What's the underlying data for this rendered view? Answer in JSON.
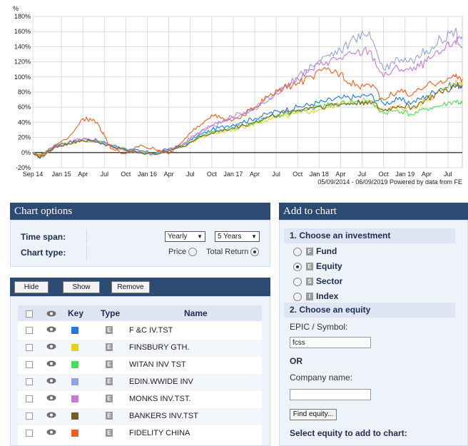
{
  "chart_data": {
    "type": "line",
    "y_unit": "%",
    "ylim": [
      -20,
      180
    ],
    "y_ticks": [
      "-20%",
      "0%",
      "20%",
      "40%",
      "60%",
      "80%",
      "100%",
      "120%",
      "140%",
      "160%",
      "180%"
    ],
    "x_ticks": [
      "Sep 14",
      "Jan 15",
      "Apr",
      "Jul",
      "Oct",
      "Jan 16",
      "Apr",
      "Jul",
      "Oct",
      "Jan 17",
      "Apr",
      "Jul",
      "Oct",
      "Jan 18",
      "Apr",
      "Jul",
      "Oct",
      "Jan 19",
      "Apr",
      "Jul"
    ],
    "x_tick_months": [
      0,
      4,
      7,
      10,
      13,
      16,
      19,
      22,
      25,
      28,
      31,
      34,
      37,
      40,
      43,
      46,
      49,
      52,
      55,
      58
    ],
    "x_range_months": [
      0,
      60
    ],
    "footnote": "05/09/2014 - 06/09/2019 Powered by data from FE",
    "grid": true,
    "series": [
      {
        "name": "F &C IV.TST",
        "color": "#1e78e6",
        "x": [
          0,
          1,
          3,
          5,
          7,
          9,
          11,
          13,
          15,
          17,
          19,
          21,
          23,
          25,
          27,
          29,
          31,
          33,
          35,
          37,
          39,
          41,
          43,
          45,
          47,
          49,
          51,
          53,
          55,
          57,
          59,
          60
        ],
        "y": [
          0,
          -6,
          10,
          14,
          18,
          16,
          10,
          5,
          2,
          0,
          5,
          10,
          22,
          30,
          35,
          40,
          45,
          52,
          56,
          60,
          64,
          68,
          72,
          73,
          76,
          65,
          70,
          66,
          75,
          85,
          90,
          88
        ]
      },
      {
        "name": "FINSBURY GTH.",
        "color": "#e8d21a",
        "x": [
          0,
          1,
          3,
          5,
          7,
          9,
          11,
          13,
          15,
          17,
          19,
          21,
          23,
          25,
          27,
          29,
          31,
          33,
          35,
          37,
          39,
          41,
          43,
          45,
          47,
          49,
          51,
          53,
          55,
          57,
          59,
          60
        ],
        "y": [
          0,
          -7,
          8,
          12,
          15,
          14,
          8,
          3,
          0,
          -2,
          3,
          8,
          18,
          25,
          28,
          33,
          38,
          45,
          48,
          52,
          55,
          60,
          64,
          66,
          70,
          55,
          60,
          58,
          70,
          80,
          92,
          95
        ]
      },
      {
        "name": "WITAN INV TST",
        "color": "#4ddc55",
        "x": [
          0,
          1,
          3,
          5,
          7,
          9,
          11,
          13,
          15,
          17,
          19,
          21,
          23,
          25,
          27,
          29,
          31,
          33,
          35,
          37,
          39,
          41,
          43,
          45,
          47,
          49,
          51,
          53,
          55,
          57,
          59,
          60
        ],
        "y": [
          0,
          -5,
          9,
          13,
          16,
          15,
          9,
          4,
          1,
          -1,
          4,
          9,
          20,
          27,
          30,
          35,
          40,
          47,
          50,
          55,
          58,
          62,
          65,
          67,
          68,
          52,
          56,
          50,
          58,
          62,
          68,
          65
        ]
      },
      {
        "name": "EDIN.WWIDE INV",
        "color": "#8fa4e0",
        "x": [
          0,
          1,
          3,
          5,
          7,
          9,
          11,
          13,
          15,
          17,
          19,
          21,
          23,
          25,
          27,
          29,
          31,
          33,
          35,
          37,
          39,
          41,
          43,
          45,
          47,
          49,
          51,
          53,
          55,
          57,
          59,
          60
        ],
        "y": [
          0,
          -8,
          6,
          12,
          18,
          14,
          8,
          2,
          -1,
          -3,
          3,
          10,
          25,
          35,
          42,
          50,
          58,
          70,
          85,
          100,
          115,
          128,
          135,
          150,
          160,
          110,
          125,
          122,
          135,
          150,
          162,
          150
        ]
      },
      {
        "name": "MONKS INV.TST.",
        "color": "#c87ad8",
        "x": [
          0,
          1,
          3,
          5,
          7,
          9,
          11,
          13,
          15,
          17,
          19,
          21,
          23,
          25,
          27,
          29,
          31,
          33,
          35,
          37,
          39,
          41,
          43,
          45,
          47,
          49,
          51,
          53,
          55,
          57,
          59,
          60
        ],
        "y": [
          0,
          -6,
          8,
          14,
          18,
          15,
          9,
          3,
          0,
          -2,
          4,
          12,
          26,
          36,
          44,
          52,
          60,
          72,
          86,
          98,
          110,
          120,
          125,
          130,
          135,
          100,
          112,
          108,
          120,
          132,
          148,
          140
        ]
      },
      {
        "name": "BANKERS INV.TST",
        "color": "#7a5a2a",
        "x": [
          0,
          1,
          3,
          5,
          7,
          9,
          11,
          13,
          15,
          17,
          19,
          21,
          23,
          25,
          27,
          29,
          31,
          33,
          35,
          37,
          39,
          41,
          43,
          45,
          47,
          49,
          51,
          53,
          55,
          57,
          59,
          60
        ],
        "y": [
          0,
          -7,
          7,
          12,
          16,
          14,
          8,
          3,
          0,
          -2,
          3,
          8,
          19,
          26,
          30,
          35,
          40,
          47,
          52,
          56,
          60,
          62,
          64,
          65,
          68,
          55,
          62,
          60,
          70,
          80,
          86,
          90
        ]
      },
      {
        "name": "FIDELITY CHINA",
        "color": "#f0601e",
        "x": [
          0,
          1,
          3,
          5,
          7,
          9,
          10,
          11,
          13,
          15,
          17,
          19,
          21,
          23,
          25,
          27,
          29,
          31,
          33,
          35,
          37,
          39,
          41,
          43,
          45,
          47,
          49,
          51,
          53,
          55,
          57,
          59,
          60
        ],
        "y": [
          0,
          -4,
          8,
          20,
          45,
          40,
          22,
          5,
          -2,
          10,
          5,
          -2,
          15,
          35,
          50,
          42,
          45,
          60,
          75,
          85,
          92,
          100,
          110,
          105,
          88,
          90,
          70,
          82,
          76,
          88,
          95,
          100,
          98
        ]
      }
    ]
  },
  "chart_options": {
    "title": "Chart options",
    "time_span_label": "Time span:",
    "time_span_period": "Yearly",
    "time_span_value": "5 Years",
    "chart_type_label": "Chart type:",
    "chart_type_price": "Price",
    "chart_type_total_return": "Total Return",
    "chart_type_selected": "Total Return"
  },
  "series_table": {
    "hide_label": "Hide",
    "show_label": "Show",
    "remove_label": "Remove",
    "headers": {
      "key": "Key",
      "type": "Type",
      "name": "Name"
    },
    "type_badge": "E",
    "rows": [
      {
        "name": "F &C IV.TST",
        "color": "#1e78e6",
        "type": "E"
      },
      {
        "name": "FINSBURY GTH.",
        "color": "#e8d21a",
        "type": "E"
      },
      {
        "name": "WITAN INV TST",
        "color": "#4ddc55",
        "type": "E"
      },
      {
        "name": "EDIN.WWIDE INV",
        "color": "#8fa4e0",
        "type": "E"
      },
      {
        "name": "MONKS INV.TST.",
        "color": "#c87ad8",
        "type": "E"
      },
      {
        "name": "BANKERS INV.TST",
        "color": "#7a5a2a",
        "type": "E"
      },
      {
        "name": "FIDELITY CHINA",
        "color": "#f0601e",
        "type": "E"
      }
    ]
  },
  "add_to_chart": {
    "title": "Add to chart",
    "step1": "1. Choose an investment",
    "options": [
      {
        "badge": "F",
        "label": "Fund"
      },
      {
        "badge": "E",
        "label": "Equity"
      },
      {
        "badge": "S",
        "label": "Sector"
      },
      {
        "badge": "I",
        "label": "Index"
      }
    ],
    "selected": "Equity",
    "step2": "2. Choose an equity",
    "epic_label": "EPIC / Symbol:",
    "epic_value": "fcss",
    "or_label": "OR",
    "company_label": "Company name:",
    "company_value": "",
    "find_button": "Find equity...",
    "select_label": "Select equity to add to chart:"
  }
}
